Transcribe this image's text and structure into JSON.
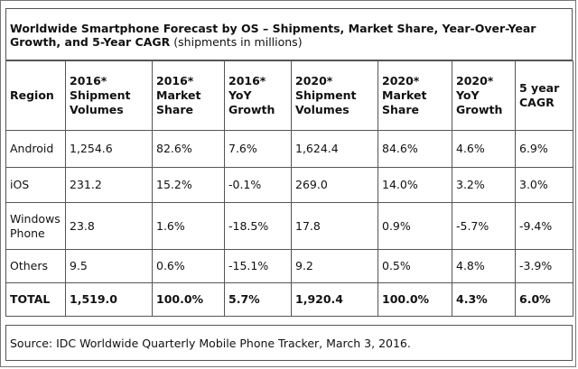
{
  "title": {
    "bold": "Worldwide Smartphone Forecast by OS – Shipments, Market Share, Year-Over-Year Growth, and 5-Year CAGR",
    "sub": "(shipments in millions)"
  },
  "headers": [
    "Region",
    "2016* Shipment Volumes",
    "2016* Market Share",
    "2016* YoY Growth",
    "2020* Shipment Volumes",
    "2020* Market Share",
    "2020* YoY Growth",
    "5 year CAGR"
  ],
  "rows": [
    [
      "Android",
      "1,254.6",
      "82.6%",
      "7.6%",
      "1,624.4",
      "84.6%",
      "4.6%",
      "6.9%"
    ],
    [
      "iOS",
      "231.2",
      "15.2%",
      "-0.1%",
      "269.0",
      "14.0%",
      "3.2%",
      "3.0%"
    ],
    [
      "Windows Phone",
      "23.8",
      "1.6%",
      "-18.5%",
      "17.8",
      "0.9%",
      "-5.7%",
      "-9.4%"
    ],
    [
      "Others",
      "9.5",
      "0.6%",
      "-15.1%",
      "9.2",
      "0.5%",
      "4.8%",
      "-3.9%"
    ],
    [
      "TOTAL",
      "1,519.0",
      "100.0%",
      "5.7%",
      "1,920.4",
      "100.0%",
      "4.3%",
      "6.0%"
    ]
  ],
  "source": "Source: IDC Worldwide Quarterly Mobile Phone Tracker, March 3, 2016."
}
